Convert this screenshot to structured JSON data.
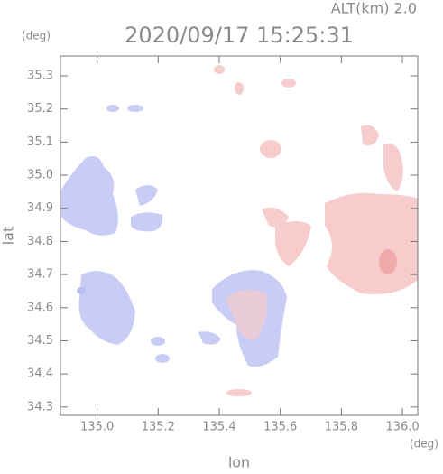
{
  "chart_data": {
    "type": "radar-map",
    "title": "2020/09/17 15:25:31",
    "annotation": "ALT(km) 2.0",
    "x_label": "lon",
    "y_label": "lat",
    "x_unit": "(deg)",
    "y_unit": "(deg)",
    "xlim": [
      134.88,
      136.05
    ],
    "xticks": [
      {
        "value": 135.0,
        "label": "135.0"
      },
      135.2,
      135.4,
      135.6,
      135.8,
      {
        "value": 136.0,
        "label": "136.0"
      }
    ],
    "ylim": [
      34.275,
      35.36
    ],
    "yticks": [
      34.3,
      34.4,
      34.5,
      34.6,
      34.7,
      34.8,
      34.9,
      {
        "value": 35.0,
        "label": "35.0"
      },
      35.1,
      35.2,
      35.3
    ]
  }
}
